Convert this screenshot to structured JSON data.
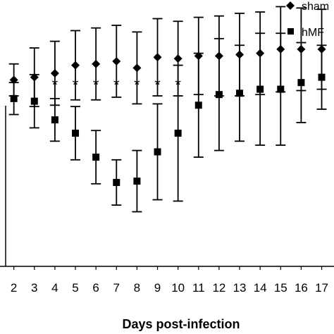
{
  "chart_data": {
    "type": "scatter",
    "xlabel": "Days post-infection",
    "ylabel": "",
    "title": "",
    "x": [
      2,
      3,
      4,
      5,
      6,
      7,
      8,
      9,
      10,
      11,
      12,
      13,
      14,
      15,
      16,
      17
    ],
    "xlim": [
      1.6,
      17.6
    ],
    "ylim": [
      0,
      10
    ],
    "legend_position": "top-right",
    "grid": false,
    "colors": {
      "series": "#000000",
      "axis": "#000000"
    },
    "series": [
      {
        "name": "sham",
        "legend_text": "sham",
        "marker": "diamond",
        "values": [
          7.0,
          7.1,
          7.25,
          7.55,
          7.6,
          7.7,
          7.45,
          7.85,
          7.8,
          7.9,
          7.9,
          7.95,
          8.0,
          8.15,
          8.15,
          8.15
        ],
        "err": [
          0.6,
          1.1,
          1.2,
          1.3,
          1.35,
          1.35,
          1.35,
          1.45,
          1.4,
          1.45,
          1.5,
          1.55,
          1.55,
          1.6,
          1.55,
          1.5
        ]
      },
      {
        "name": "hMF",
        "legend_text": "hMF",
        "marker": "square",
        "values": [
          6.3,
          6.2,
          5.5,
          5.0,
          4.1,
          3.15,
          3.2,
          4.3,
          5.0,
          6.05,
          6.45,
          6.5,
          6.65,
          6.65,
          6.9,
          7.1
        ],
        "err": [
          0.6,
          1.0,
          0.8,
          1.0,
          1.0,
          0.85,
          1.15,
          1.8,
          2.55,
          1.95,
          2.1,
          1.8,
          2.1,
          2.1,
          1.5,
          1.2
        ]
      }
    ],
    "annotations": [
      {
        "x": 4,
        "text": "*"
      },
      {
        "x": 5,
        "text": "*"
      },
      {
        "x": 6,
        "text": "*"
      },
      {
        "x": 7,
        "text": "*"
      },
      {
        "x": 8,
        "text": "*"
      },
      {
        "x": 9,
        "text": "*"
      },
      {
        "x": 10,
        "text": "*"
      }
    ]
  }
}
